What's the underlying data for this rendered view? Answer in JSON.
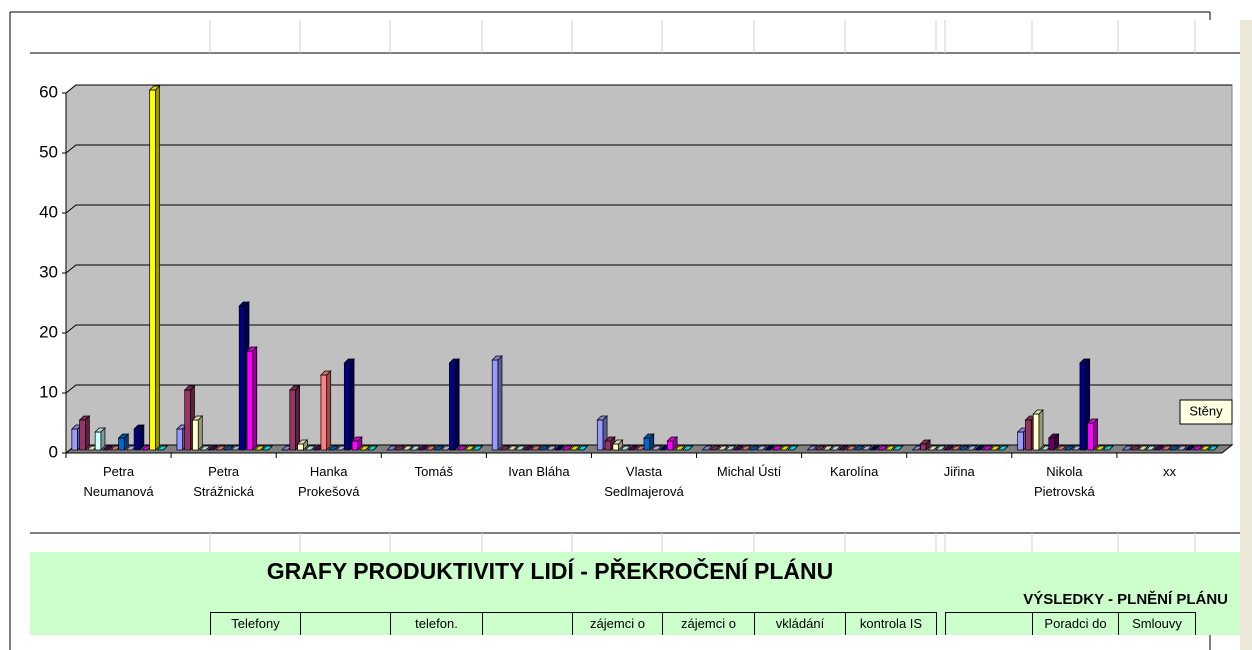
{
  "chart_data": {
    "type": "bar3d",
    "categories": [
      "Petra Neumanová",
      "Petra Strážnická",
      "Hanka Prokešová",
      "Tomáš",
      "Ivan Bláha",
      "Vlasta Sedlmajerová",
      "Michal Ústí",
      "Karolína",
      "Jiřina",
      "Nikola Pietrovská",
      "xx"
    ],
    "series": [
      {
        "color": "#9999ff",
        "values": [
          3.5,
          3.5,
          0,
          0,
          15,
          5,
          0,
          0,
          0,
          3,
          0
        ]
      },
      {
        "color": "#993366",
        "values": [
          5,
          10,
          10,
          0,
          0,
          1.5,
          0,
          0,
          1,
          5,
          0
        ]
      },
      {
        "color": "#ffffcc",
        "values": [
          0,
          5,
          1,
          0,
          0,
          1,
          0,
          0,
          0,
          6,
          0
        ]
      },
      {
        "color": "#ccffff",
        "values": [
          3,
          0,
          0,
          0,
          0,
          0,
          0,
          0,
          0,
          0,
          0
        ]
      },
      {
        "color": "#660066",
        "values": [
          0,
          0,
          0,
          0,
          0,
          0,
          0,
          0,
          0,
          2,
          0
        ]
      },
      {
        "color": "#ff8080",
        "values": [
          0,
          0,
          12.5,
          0,
          0,
          0,
          0,
          0,
          0,
          0,
          0
        ]
      },
      {
        "color": "#0066cc",
        "values": [
          2,
          0,
          0,
          0,
          0,
          2,
          0,
          0,
          0,
          0,
          0
        ]
      },
      {
        "color": "#ccccff",
        "values": [
          0,
          0,
          0,
          0,
          0,
          0,
          0,
          0,
          0,
          0,
          0
        ]
      },
      {
        "color": "#000080",
        "values": [
          3.5,
          24,
          14.5,
          14.5,
          0,
          0,
          0,
          0,
          0,
          14.5,
          0
        ]
      },
      {
        "color": "#ff00ff",
        "values": [
          0,
          16.5,
          1.5,
          0,
          0,
          1.5,
          0,
          0,
          0,
          4.5,
          0
        ]
      },
      {
        "color": "#ffff00",
        "values": [
          60,
          0,
          0,
          0,
          0,
          0,
          0,
          0,
          0,
          0,
          0
        ]
      },
      {
        "color": "#00ffff",
        "values": [
          0,
          0,
          0,
          0,
          0,
          0,
          0,
          0,
          0,
          0,
          0
        ]
      }
    ],
    "ylim": [
      0,
      60
    ],
    "yticks": [
      0,
      10,
      20,
      30,
      40,
      50,
      60
    ],
    "grid": true,
    "wall_color": "#c0c0c0"
  },
  "tooltip": "Stěny",
  "sheet": {
    "title": "GRAFY  PRODUKTIVITY LIDÍ - PŘEKROČENÍ PLÁNU",
    "subtitle": "VÝSLEDKY - PLNĚNÍ PLÁNU",
    "headers": [
      "Telefony",
      "telefon.",
      "zájemci o",
      "zájemci o",
      "vkládání",
      "kontrola IS",
      "Poradci do",
      "Smlouvy"
    ]
  }
}
